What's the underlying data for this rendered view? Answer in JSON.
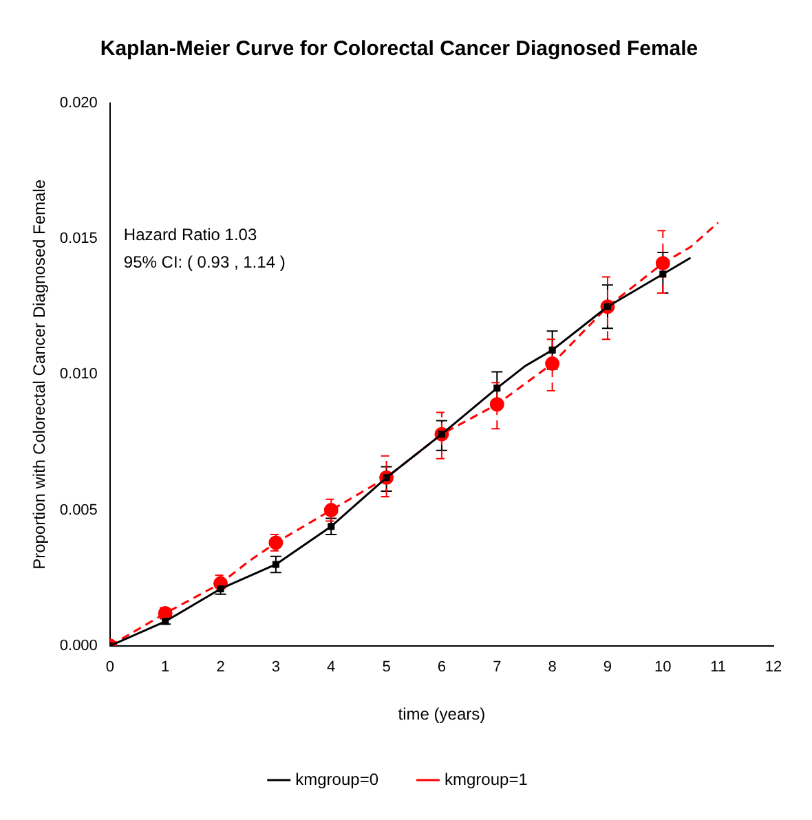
{
  "chart_data": {
    "type": "line",
    "title": "Kaplan-Meier Curve for Colorectal Cancer Diagnosed Female",
    "xlabel": "time (years)",
    "ylabel": "Proportion with Colorectal Cancer Diagnosed Female",
    "annotations": [
      "Hazard Ratio 1.03",
      "95% CI: ( 0.93 , 1.14 )"
    ],
    "xlim": [
      0,
      12
    ],
    "xticks": [
      0,
      1,
      2,
      3,
      4,
      5,
      6,
      7,
      8,
      9,
      10,
      11,
      12
    ],
    "ylim": [
      0,
      0.02
    ],
    "yticks": [
      {
        "value": 0,
        "label": "0.000"
      },
      {
        "value": 0.005,
        "label": "0.005"
      },
      {
        "value": 0.01,
        "label": "0.010"
      },
      {
        "value": 0.015,
        "label": "0.015"
      },
      {
        "value": 0.02,
        "label": "0.020"
      }
    ],
    "grid": false,
    "legend": "bottom",
    "series": [
      {
        "name": "kmgroup=0",
        "color": "#000000",
        "marker": "none",
        "line_style": "solid",
        "x": [
          0,
          1,
          2,
          3,
          4,
          5,
          6,
          7,
          7.5,
          8,
          9,
          10,
          10.5
        ],
        "values": [
          0,
          0.0009,
          0.0021,
          0.003,
          0.0044,
          0.0062,
          0.0078,
          0.0095,
          0.0103,
          0.0109,
          0.0125,
          0.0137,
          0.0143
        ]
      },
      {
        "name": "kmgroup=1",
        "color": "#ff0000",
        "marker": "none",
        "line_style": "dashed",
        "x": [
          0,
          1,
          2,
          2.5,
          3,
          4,
          5,
          6,
          7,
          8,
          9,
          10,
          10.5,
          11
        ],
        "values": [
          0,
          0.0012,
          0.0023,
          0.0031,
          0.0038,
          0.005,
          0.0062,
          0.0078,
          0.0089,
          0.0104,
          0.0125,
          0.0141,
          0.0147,
          0.0156
        ]
      },
      {
        "type": "scatter",
        "color": "#000000",
        "marker": "square",
        "line_style": "solid",
        "x": [
          0,
          1,
          2,
          3,
          4,
          5,
          6,
          7,
          8,
          9,
          10
        ],
        "values": [
          0,
          0.0009,
          0.0021,
          0.003,
          0.0044,
          0.0062,
          0.0078,
          0.0095,
          0.0109,
          0.0125,
          0.0137
        ],
        "errors": [
          null,
          0.0001,
          0.0002,
          0.0003,
          0.0003,
          [
            0.0057,
            0.0066
          ],
          [
            0.0072,
            0.0083
          ],
          0.0006,
          0.0007,
          0.0008,
          [
            0.013,
            0.0145
          ]
        ]
      },
      {
        "type": "scatter",
        "color": "#ff0000",
        "marker": "circle",
        "line_style": "dashed",
        "x": [
          0,
          1,
          2,
          3,
          4,
          5,
          6,
          7,
          8,
          9,
          10
        ],
        "values": [
          0,
          0.0012,
          0.0023,
          0.0038,
          0.005,
          0.0062,
          0.0078,
          0.0089,
          0.0104,
          0.0125,
          0.0141
        ],
        "errors": [
          null,
          0.0002,
          0.0003,
          0.0003,
          0.0004,
          [
            0.0055,
            0.007
          ],
          [
            0.0069,
            0.0086
          ],
          [
            0.008,
            0.0097
          ],
          [
            0.0094,
            0.0113
          ],
          [
            0.0113,
            0.0136
          ],
          [
            0.013,
            0.0153
          ]
        ]
      }
    ]
  }
}
